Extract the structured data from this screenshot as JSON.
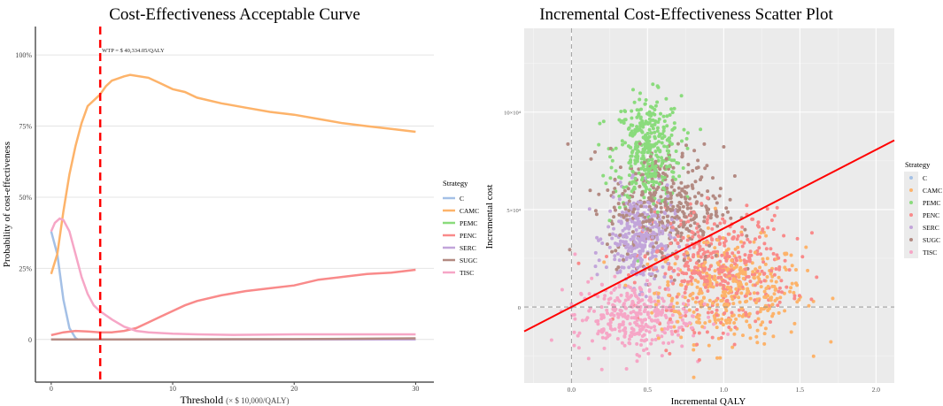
{
  "chart_data": [
    {
      "type": "line",
      "title": "Cost-Effectiveness Acceptable Curve",
      "xlabel": "Threshold",
      "xlabel_unit": "(× $ 10,000/QALY)",
      "ylabel": "Probability of cost-effectiveness",
      "xlim": [
        -1.3,
        31.5
      ],
      "ylim": [
        -0.15,
        1.1
      ],
      "xticks": [
        "0",
        "10",
        "20",
        "30"
      ],
      "yticks": [
        "0",
        "25%",
        "50%",
        "75%",
        "100%"
      ],
      "grid": true,
      "legend_title": "Strategy",
      "legend_position": "right",
      "annotation": {
        "text": "WTP = $ 40,334.05/QALY",
        "x": 4.0334
      },
      "series": [
        {
          "name": "C",
          "color": "#A4C0E6",
          "points": [
            [
              0,
              0.38
            ],
            [
              0.5,
              0.3
            ],
            [
              1,
              0.14
            ],
            [
              1.5,
              0.04
            ],
            [
              2,
              0.005
            ],
            [
              2.2,
              0
            ],
            [
              30,
              0
            ]
          ]
        },
        {
          "name": "CAMC",
          "color": "#FDB36A",
          "points": [
            [
              0,
              0.23
            ],
            [
              0.5,
              0.3
            ],
            [
              1,
              0.45
            ],
            [
              1.5,
              0.58
            ],
            [
              2,
              0.68
            ],
            [
              2.5,
              0.76
            ],
            [
              3,
              0.82
            ],
            [
              4,
              0.86
            ],
            [
              4.5,
              0.89
            ],
            [
              5,
              0.91
            ],
            [
              6,
              0.925
            ],
            [
              6.5,
              0.93
            ],
            [
              8,
              0.92
            ],
            [
              9,
              0.9
            ],
            [
              10,
              0.88
            ],
            [
              11,
              0.87
            ],
            [
              12,
              0.85
            ],
            [
              14,
              0.83
            ],
            [
              16,
              0.815
            ],
            [
              18,
              0.8
            ],
            [
              20,
              0.79
            ],
            [
              22,
              0.775
            ],
            [
              24,
              0.76
            ],
            [
              26,
              0.75
            ],
            [
              28,
              0.74
            ],
            [
              30,
              0.73
            ]
          ]
        },
        {
          "name": "PEMC",
          "color": "#8ADB7C",
          "points": [
            [
              0,
              0
            ],
            [
              30,
              0
            ]
          ]
        },
        {
          "name": "PENC",
          "color": "#F98A8A",
          "points": [
            [
              0,
              0.015
            ],
            [
              0.5,
              0.02
            ],
            [
              1,
              0.025
            ],
            [
              2,
              0.03
            ],
            [
              3,
              0.028
            ],
            [
              4,
              0.025
            ],
            [
              5,
              0.025
            ],
            [
              6,
              0.03
            ],
            [
              7,
              0.04
            ],
            [
              8,
              0.06
            ],
            [
              9,
              0.08
            ],
            [
              10,
              0.1
            ],
            [
              11,
              0.12
            ],
            [
              12,
              0.135
            ],
            [
              14,
              0.155
            ],
            [
              16,
              0.17
            ],
            [
              18,
              0.18
            ],
            [
              20,
              0.19
            ],
            [
              22,
              0.21
            ],
            [
              24,
              0.22
            ],
            [
              26,
              0.23
            ],
            [
              28,
              0.235
            ],
            [
              30,
              0.245
            ]
          ]
        },
        {
          "name": "SERC",
          "color": "#C2A5DA",
          "points": [
            [
              0,
              0
            ],
            [
              30,
              0
            ]
          ]
        },
        {
          "name": "SUGC",
          "color": "#B38A82",
          "points": [
            [
              0,
              0
            ],
            [
              20,
              0.001
            ],
            [
              30,
              0.004
            ]
          ]
        },
        {
          "name": "TISC",
          "color": "#F6A6C6",
          "points": [
            [
              0,
              0.38
            ],
            [
              0.3,
              0.41
            ],
            [
              0.7,
              0.425
            ],
            [
              1,
              0.42
            ],
            [
              1.5,
              0.38
            ],
            [
              2,
              0.3
            ],
            [
              2.5,
              0.22
            ],
            [
              3,
              0.16
            ],
            [
              3.5,
              0.12
            ],
            [
              4,
              0.1
            ],
            [
              5,
              0.07
            ],
            [
              6,
              0.045
            ],
            [
              7,
              0.03
            ],
            [
              8,
              0.025
            ],
            [
              10,
              0.02
            ],
            [
              12,
              0.018
            ],
            [
              15,
              0.016
            ],
            [
              20,
              0.018
            ],
            [
              25,
              0.018
            ],
            [
              30,
              0.018
            ]
          ]
        }
      ]
    },
    {
      "type": "scatter",
      "title": "Incremental Cost-Effectiveness Scatter Plot",
      "xlabel": "Incremental QALY",
      "ylabel": "Incremental cost",
      "xlim": [
        -0.31,
        2.12
      ],
      "ylim": [
        -39000,
        143000
      ],
      "xticks": [
        "0.0",
        "0.5",
        "1.0",
        "1.5",
        "2.0"
      ],
      "yticks": [
        "0",
        "5×10⁴",
        "10×10⁴"
      ],
      "grid": true,
      "background": "#EBEBEB",
      "wtp_line_slope": 40334.05,
      "legend_title": "Strategy",
      "legend_position": "right",
      "series": [
        {
          "name": "C",
          "color": "#A4C0E6",
          "mean": [
            0,
            0
          ],
          "sd": [
            0,
            0
          ],
          "n": 1
        },
        {
          "name": "CAMC",
          "color": "#FDB36A",
          "mean": [
            1.05,
            8000
          ],
          "sd": [
            0.24,
            13000
          ],
          "n": 380
        },
        {
          "name": "PEMC",
          "color": "#8ADB7C",
          "mean": [
            0.5,
            80000
          ],
          "sd": [
            0.11,
            14000
          ],
          "n": 380
        },
        {
          "name": "PENC",
          "color": "#F98A8A",
          "mean": [
            0.95,
            20000
          ],
          "sd": [
            0.24,
            15000
          ],
          "n": 420
        },
        {
          "name": "SERC",
          "color": "#C2A5DA",
          "mean": [
            0.45,
            35000
          ],
          "sd": [
            0.11,
            12000
          ],
          "n": 330
        },
        {
          "name": "SUGC",
          "color": "#B38A82",
          "mean": [
            0.62,
            52000
          ],
          "sd": [
            0.19,
            15000
          ],
          "n": 380
        },
        {
          "name": "TISC",
          "color": "#F6A6C6",
          "mean": [
            0.4,
            -5000
          ],
          "sd": [
            0.19,
            9000
          ],
          "n": 330
        }
      ]
    }
  ]
}
